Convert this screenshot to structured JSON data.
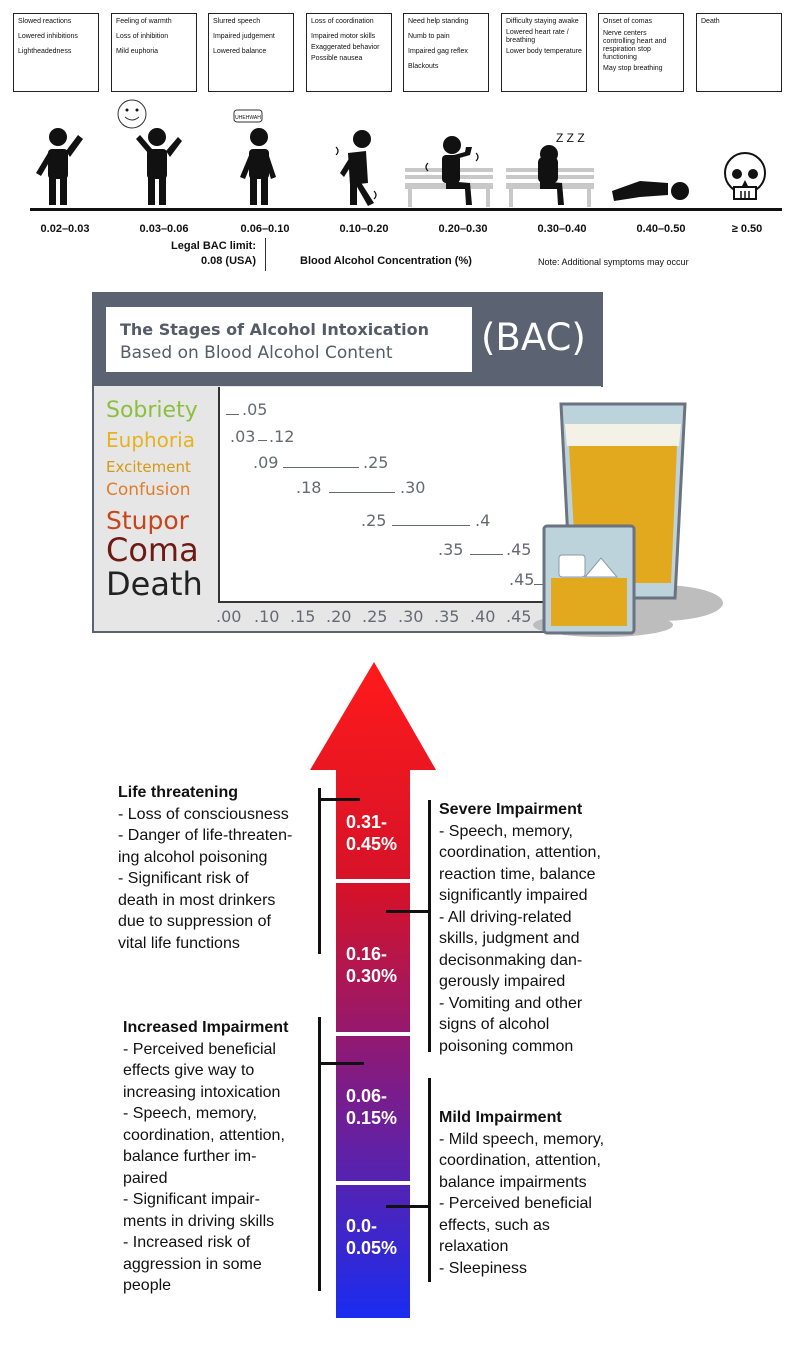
{
  "stages_top": [
    {
      "lines": [
        "Slowed reactions",
        "Lowered inhibitions",
        "Lightheadedness"
      ]
    },
    {
      "lines": [
        "Feeling of warmth",
        "Loss of inhibition",
        "Mild euphoria"
      ]
    },
    {
      "lines": [
        "Slurred speech",
        "Impaired judgement",
        "Lowered balance"
      ]
    },
    {
      "lines": [
        "Loss of coordination",
        "Impaired motor skills",
        "Exaggerated behavior",
        "Possible nausea"
      ]
    },
    {
      "lines": [
        "Need help standing",
        "Numb to pain",
        "Impaired gag reflex",
        "Blackouts"
      ]
    },
    {
      "lines": [
        "Difficulty staying awake",
        "Lowered heart rate / breathing",
        "Lower body temperature"
      ]
    },
    {
      "lines": [
        "Onset of comas",
        "Nerve centers controlling heart and respiration stop functioning",
        "May stop breathing"
      ]
    },
    {
      "lines": [
        "Death"
      ]
    }
  ],
  "ranges": [
    "0.02–0.03",
    "0.03–0.06",
    "0.06–0.10",
    "0.10–0.20",
    "0.20–0.30",
    "0.30–0.40",
    "0.40–0.50",
    "≥ 0.50"
  ],
  "speech_bubble": "UHEHWAH",
  "sleep_text": "Z Z Z",
  "legal_limit": {
    "line1": "Legal BAC limit:",
    "line2": "0.08 (USA)"
  },
  "axis_title": "Blood Alcohol Concentration (%)",
  "note": "Note: Additional symptoms may occur",
  "panel": {
    "title": "The Stages of Alcohol Intoxication",
    "subtitle": "Based on Blood Alcohol Content",
    "tag": "(BAC)"
  },
  "colors": {
    "sobriety": "#8bbf3f",
    "euphoria": "#e6b21e",
    "excitement": "#d49a12",
    "confusion": "#e07d2c",
    "stupor": "#c8441a",
    "coma": "#6e1a14",
    "death": "#222222",
    "panel_header": "#5b6272"
  },
  "chart_data": {
    "type": "range-bar",
    "x_ticks": [
      ".00",
      ".10",
      ".15",
      ".20",
      ".25",
      ".30",
      ".35",
      ".40",
      ".45"
    ],
    "stages": [
      {
        "name": "Sobriety",
        "start_label": "",
        "end_label": ".05",
        "start": 0.0,
        "end": 0.05
      },
      {
        "name": "Euphoria",
        "start_label": ".03",
        "end_label": ".12",
        "start": 0.03,
        "end": 0.12
      },
      {
        "name": "Excitement",
        "start_label": ".09",
        "end_label": ".25",
        "start": 0.09,
        "end": 0.25
      },
      {
        "name": "Confusion",
        "start_label": ".18",
        "end_label": ".30",
        "start": 0.18,
        "end": 0.3
      },
      {
        "name": "Stupor",
        "start_label": ".25",
        "end_label": ".4",
        "start": 0.25,
        "end": 0.4
      },
      {
        "name": "Coma",
        "start_label": ".35",
        "end_label": ".45",
        "start": 0.35,
        "end": 0.45
      },
      {
        "name": "Death",
        "start_label": ".45",
        "end_label": "",
        "start": 0.45,
        "end": null
      }
    ]
  },
  "arrow": {
    "blocks": [
      {
        "label1": "0.31-",
        "label2": "0.45%"
      },
      {
        "label1": "0.16-",
        "label2": "0.30%"
      },
      {
        "label1": "0.06-",
        "label2": "0.15%"
      },
      {
        "label1": "0.0-",
        "label2": "0.05%"
      }
    ]
  },
  "life_threatening": {
    "heading": "Life threatening",
    "lines": [
      "- Loss of consciousness",
      "- Danger of life-threaten-",
      "ing alcohol poisoning",
      "- Significant risk of",
      "death in most drinkers",
      "due to suppression of",
      "vital life functions"
    ]
  },
  "increased": {
    "heading": "Increased Impairment",
    "lines": [
      "- Perceived beneficial",
      "effects give way to",
      "increasing intoxication",
      "- Speech, memory,",
      "coordination, attention,",
      "balance further im-",
      "paired",
      "- Significant impair-",
      "ments in driving skills",
      "- Increased risk of",
      "aggression in some",
      "people"
    ]
  },
  "severe": {
    "heading": "Severe Impairment",
    "lines": [
      "- Speech, memory,",
      "coordination, attention,",
      "reaction time, balance",
      "significantly impaired",
      "- All driving-related",
      "skills, judgment and",
      "decisonmaking dan-",
      "gerously impaired",
      "- Vomiting and other",
      "signs of alcohol",
      "poisoning common"
    ]
  },
  "mild": {
    "heading": "Mild Impairment",
    "lines": [
      "- Mild speech, memory,",
      "coordination, attention,",
      "balance impairments",
      "- Perceived beneficial",
      "effects, such as",
      "relaxation",
      "- Sleepiness"
    ]
  }
}
